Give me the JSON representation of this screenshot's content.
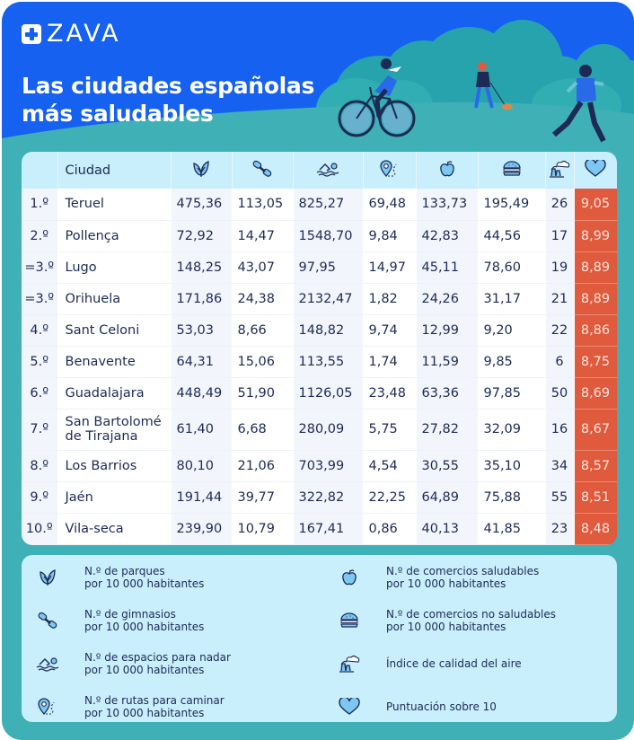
{
  "brand": {
    "logo_text": "ZAVA"
  },
  "header": {
    "title_line1": "Las ciudades españolas",
    "title_line2": "más saludables"
  },
  "colors": {
    "hero_blue": "#1661f0",
    "teal": "#3fb0b5",
    "header_row": "#c9eefc",
    "score_red": "#e05a3e",
    "text_navy": "#1d2a55"
  },
  "table": {
    "columns": [
      {
        "key": "rank",
        "label": "",
        "icon": ""
      },
      {
        "key": "city",
        "label": "Ciudad",
        "icon": ""
      },
      {
        "key": "parks",
        "label": "",
        "icon": "leaf-icon"
      },
      {
        "key": "gyms",
        "label": "",
        "icon": "dumbbell-icon"
      },
      {
        "key": "swim",
        "label": "",
        "icon": "swimmer-icon"
      },
      {
        "key": "routes",
        "label": "",
        "icon": "map-pin-route-icon"
      },
      {
        "key": "healthy_shops",
        "label": "",
        "icon": "apple-icon"
      },
      {
        "key": "unhealthy_shops",
        "label": "",
        "icon": "burger-icon"
      },
      {
        "key": "air",
        "label": "",
        "icon": "factory-smoke-icon"
      },
      {
        "key": "score",
        "label": "",
        "icon": "heart-icon"
      }
    ],
    "rows": [
      {
        "rank": "1.º",
        "city": "Teruel",
        "parks": "475,36",
        "gyms": "113,05",
        "swim": "825,27",
        "routes": "69,48",
        "healthy_shops": "133,73",
        "unhealthy_shops": "195,49",
        "air": "26",
        "score": "9,05"
      },
      {
        "rank": "2.º",
        "city": "Pollença",
        "parks": "72,92",
        "gyms": "14,47",
        "swim": "1548,70",
        "routes": "9,84",
        "healthy_shops": "42,83",
        "unhealthy_shops": "44,56",
        "air": "17",
        "score": "8,99"
      },
      {
        "rank": "=3.º",
        "city": "Lugo",
        "parks": "148,25",
        "gyms": "43,07",
        "swim": "97,95",
        "routes": "14,97",
        "healthy_shops": "45,11",
        "unhealthy_shops": "78,60",
        "air": "19",
        "score": "8,89"
      },
      {
        "rank": "=3.º",
        "city": "Orihuela",
        "parks": "171,86",
        "gyms": "24,38",
        "swim": "2132,47",
        "routes": "1,82",
        "healthy_shops": "24,26",
        "unhealthy_shops": "31,17",
        "air": "21",
        "score": "8,89"
      },
      {
        "rank": "4.º",
        "city": "Sant Celoni",
        "parks": "53,03",
        "gyms": "8,66",
        "swim": "148,82",
        "routes": "9,74",
        "healthy_shops": "12,99",
        "unhealthy_shops": "9,20",
        "air": "22",
        "score": "8,86"
      },
      {
        "rank": "5.º",
        "city": "Benavente",
        "parks": "64,31",
        "gyms": "15,06",
        "swim": "113,55",
        "routes": "1,74",
        "healthy_shops": "11,59",
        "unhealthy_shops": "9,85",
        "air": "6",
        "score": "8,75"
      },
      {
        "rank": "6.º",
        "city": "Guadalajara",
        "parks": "448,49",
        "gyms": "51,90",
        "swim": "1126,05",
        "routes": "23,48",
        "healthy_shops": "63,36",
        "unhealthy_shops": "97,85",
        "air": "50",
        "score": "8,69"
      },
      {
        "rank": "7.º",
        "city": "San Bartolomé de Tirajana",
        "parks": "61,40",
        "gyms": "6,68",
        "swim": "280,09",
        "routes": "5,75",
        "healthy_shops": "27,82",
        "unhealthy_shops": "32,09",
        "air": "16",
        "score": "8,67"
      },
      {
        "rank": "8.º",
        "city": "Los Barrios",
        "parks": "80,10",
        "gyms": "21,06",
        "swim": "703,99",
        "routes": "4,54",
        "healthy_shops": "30,55",
        "unhealthy_shops": "35,10",
        "air": "34",
        "score": "8,57"
      },
      {
        "rank": "9.º",
        "city": "Jaén",
        "parks": "191,44",
        "gyms": "39,77",
        "swim": "322,82",
        "routes": "22,25",
        "healthy_shops": "64,89",
        "unhealthy_shops": "75,88",
        "air": "55",
        "score": "8,51"
      },
      {
        "rank": "10.º",
        "city": "Vila-seca",
        "parks": "239,90",
        "gyms": "10,79",
        "swim": "167,41",
        "routes": "0,86",
        "healthy_shops": "40,13",
        "unhealthy_shops": "41,85",
        "air": "23",
        "score": "8,48"
      }
    ]
  },
  "legend": [
    {
      "icon": "leaf-icon",
      "line1": "N.º de parques",
      "line2": "por 10 000 habitantes"
    },
    {
      "icon": "dumbbell-icon",
      "line1": "N.º de gimnasios",
      "line2": "por 10 000 habitantes"
    },
    {
      "icon": "swimmer-icon",
      "line1": "N.º de espacios para nadar",
      "line2": "por 10 000 habitantes"
    },
    {
      "icon": "map-pin-route-icon",
      "line1": "N.º de rutas para caminar",
      "line2": "por 10 000 habitantes"
    },
    {
      "icon": "apple-icon",
      "line1": "N.º de comercios saludables",
      "line2": "por 10 000 habitantes"
    },
    {
      "icon": "burger-icon",
      "line1": "N.º de comercios no saludables",
      "line2": "por 10 000 habitantes"
    },
    {
      "icon": "factory-smoke-icon",
      "line1": "Índice de calidad del aire",
      "line2": ""
    },
    {
      "icon": "heart-icon",
      "line1": "Puntuación sobre 10",
      "line2": ""
    }
  ]
}
